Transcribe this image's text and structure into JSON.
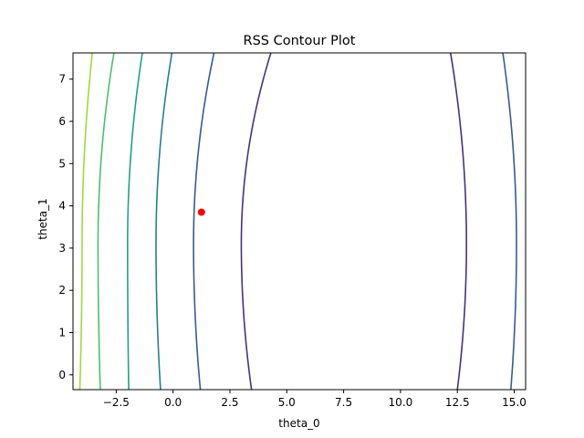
{
  "chart_data": {
    "type": "contour",
    "title": "RSS Contour Plot",
    "xlabel": "theta_0",
    "ylabel": "theta_1",
    "xlim": [
      -4.4,
      15.5
    ],
    "ylim": [
      -0.35,
      7.62
    ],
    "x_ticks": [
      -2.5,
      0.0,
      2.5,
      5.0,
      7.5,
      10.0,
      12.5,
      15.0
    ],
    "x_tick_labels": [
      "−2.5",
      "0.0",
      "2.5",
      "5.0",
      "7.5",
      "10.0",
      "12.5",
      "15.0"
    ],
    "y_ticks": [
      0,
      1,
      2,
      3,
      4,
      5,
      6,
      7
    ],
    "y_tick_labels": [
      "0",
      "1",
      "2",
      "3",
      "4",
      "5",
      "6",
      "7"
    ],
    "grid": false,
    "contour_levels": [
      {
        "theta0_at_center": -4.0,
        "theta0_at_bottom": -4.1,
        "theta0_at_top": -3.55,
        "color": "#a0da39"
      },
      {
        "theta0_at_center": -3.3,
        "theta0_at_bottom": -3.2,
        "theta0_at_top": -2.6,
        "color": "#4ac16d"
      },
      {
        "theta0_at_center": -2.0,
        "theta0_at_bottom": -1.95,
        "theta0_at_top": -1.35,
        "color": "#1fa187"
      },
      {
        "theta0_at_center": -0.75,
        "theta0_at_bottom": -0.55,
        "theta0_at_top": -0.05,
        "color": "#277f8e"
      },
      {
        "theta0_at_center": 0.9,
        "theta0_at_bottom": 1.2,
        "theta0_at_top": 1.8,
        "color": "#365c8d"
      },
      {
        "theta0_at_center": 3.0,
        "theta0_at_bottom": 3.45,
        "theta0_at_top": 4.3,
        "color": "#46327e"
      },
      {
        "theta0_at_center": 12.9,
        "theta0_at_bottom": 12.5,
        "theta0_at_top": 12.2,
        "color": "#46327e"
      },
      {
        "theta0_at_center": 15.1,
        "theta0_at_bottom": 14.85,
        "theta0_at_top": 14.5,
        "color": "#365c8d"
      }
    ],
    "center_theta1": 3.1,
    "point": {
      "x": 1.25,
      "y": 3.85,
      "color": "#ff0000"
    }
  }
}
